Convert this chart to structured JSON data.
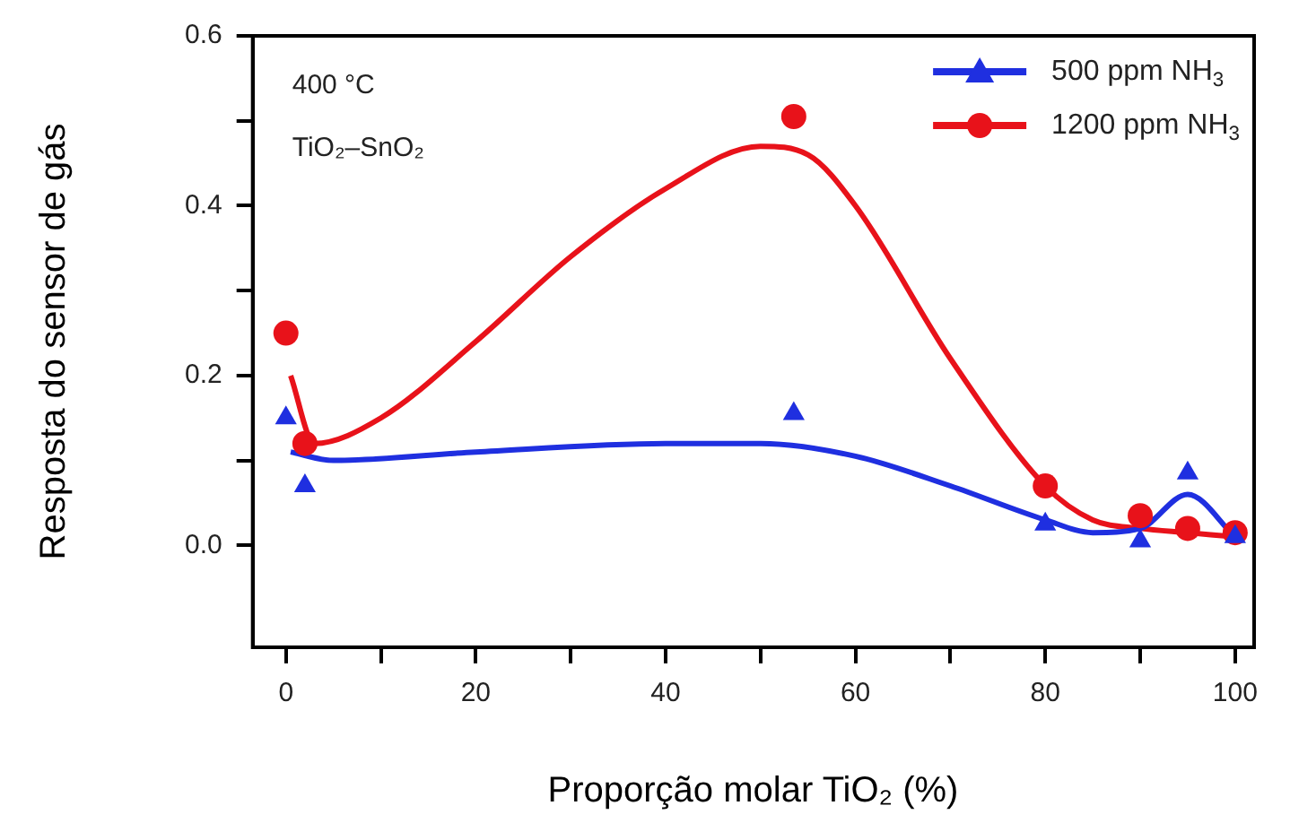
{
  "chart_data": {
    "type": "scatter",
    "xlabel": "Proporção molar TiO₂ (%)",
    "ylabel": "Resposta do sensor de gás",
    "annotations": [
      "400 °C",
      "TiO₂–SnO₂"
    ],
    "xlim": [
      -3.5,
      102
    ],
    "xticks": [
      0,
      {
        "value": 10,
        "label": null
      },
      20,
      {
        "value": 30,
        "label": null
      },
      40,
      {
        "value": 50,
        "label": null
      },
      60,
      {
        "value": 70,
        "label": null
      },
      80,
      {
        "value": 90,
        "label": null
      },
      100
    ],
    "ylim": [
      -0.12,
      0.6
    ],
    "yticks": [
      {
        "value": 0,
        "label": "0.0"
      },
      {
        "value": 0.1,
        "label": null
      },
      {
        "value": 0.2,
        "label": "0.2"
      },
      {
        "value": 0.3,
        "label": null
      },
      {
        "value": 0.4,
        "label": "0.4"
      },
      {
        "value": 0.5,
        "label": null
      },
      {
        "value": 0.6,
        "label": "0.6"
      }
    ],
    "grid": false,
    "legend": "top right",
    "series": [
      {
        "name": "500 ppm NH$_{3}$",
        "type": "scatter",
        "marker": "triangle",
        "color": "#1f2fe0",
        "x": [
          0,
          2,
          53.5,
          80,
          90,
          95,
          100
        ],
        "values": [
          0.15,
          0.07,
          0.155,
          0.025,
          0.005,
          0.085,
          0.01
        ]
      },
      {
        "name": "1200 ppm NH$_{3}$",
        "type": "scatter",
        "marker": "circle",
        "color": "#e8121a",
        "x": [
          0,
          2,
          53.5,
          80,
          90,
          95,
          100
        ],
        "values": [
          0.25,
          0.12,
          0.505,
          0.07,
          0.035,
          0.02,
          0.015
        ]
      },
      {
        "type": "line",
        "marker": "none",
        "color": "#1f2fe0",
        "x": [
          0.5,
          5,
          20,
          40,
          50,
          60,
          70,
          80,
          85,
          90,
          95,
          100
        ],
        "values": [
          0.11,
          0.1,
          0.11,
          0.12,
          0.12,
          0.105,
          0.07,
          0.03,
          0.015,
          0.02,
          0.06,
          0.01
        ]
      },
      {
        "type": "line",
        "marker": "none",
        "color": "#e8121a",
        "x": [
          0.5,
          3,
          10,
          20,
          30,
          40,
          50,
          55,
          60,
          70,
          80,
          85,
          90,
          95,
          100
        ],
        "values": [
          0.2,
          0.12,
          0.15,
          0.24,
          0.34,
          0.42,
          0.47,
          0.46,
          0.4,
          0.22,
          0.07,
          0.03,
          0.02,
          0.015,
          0.01
        ]
      }
    ]
  }
}
